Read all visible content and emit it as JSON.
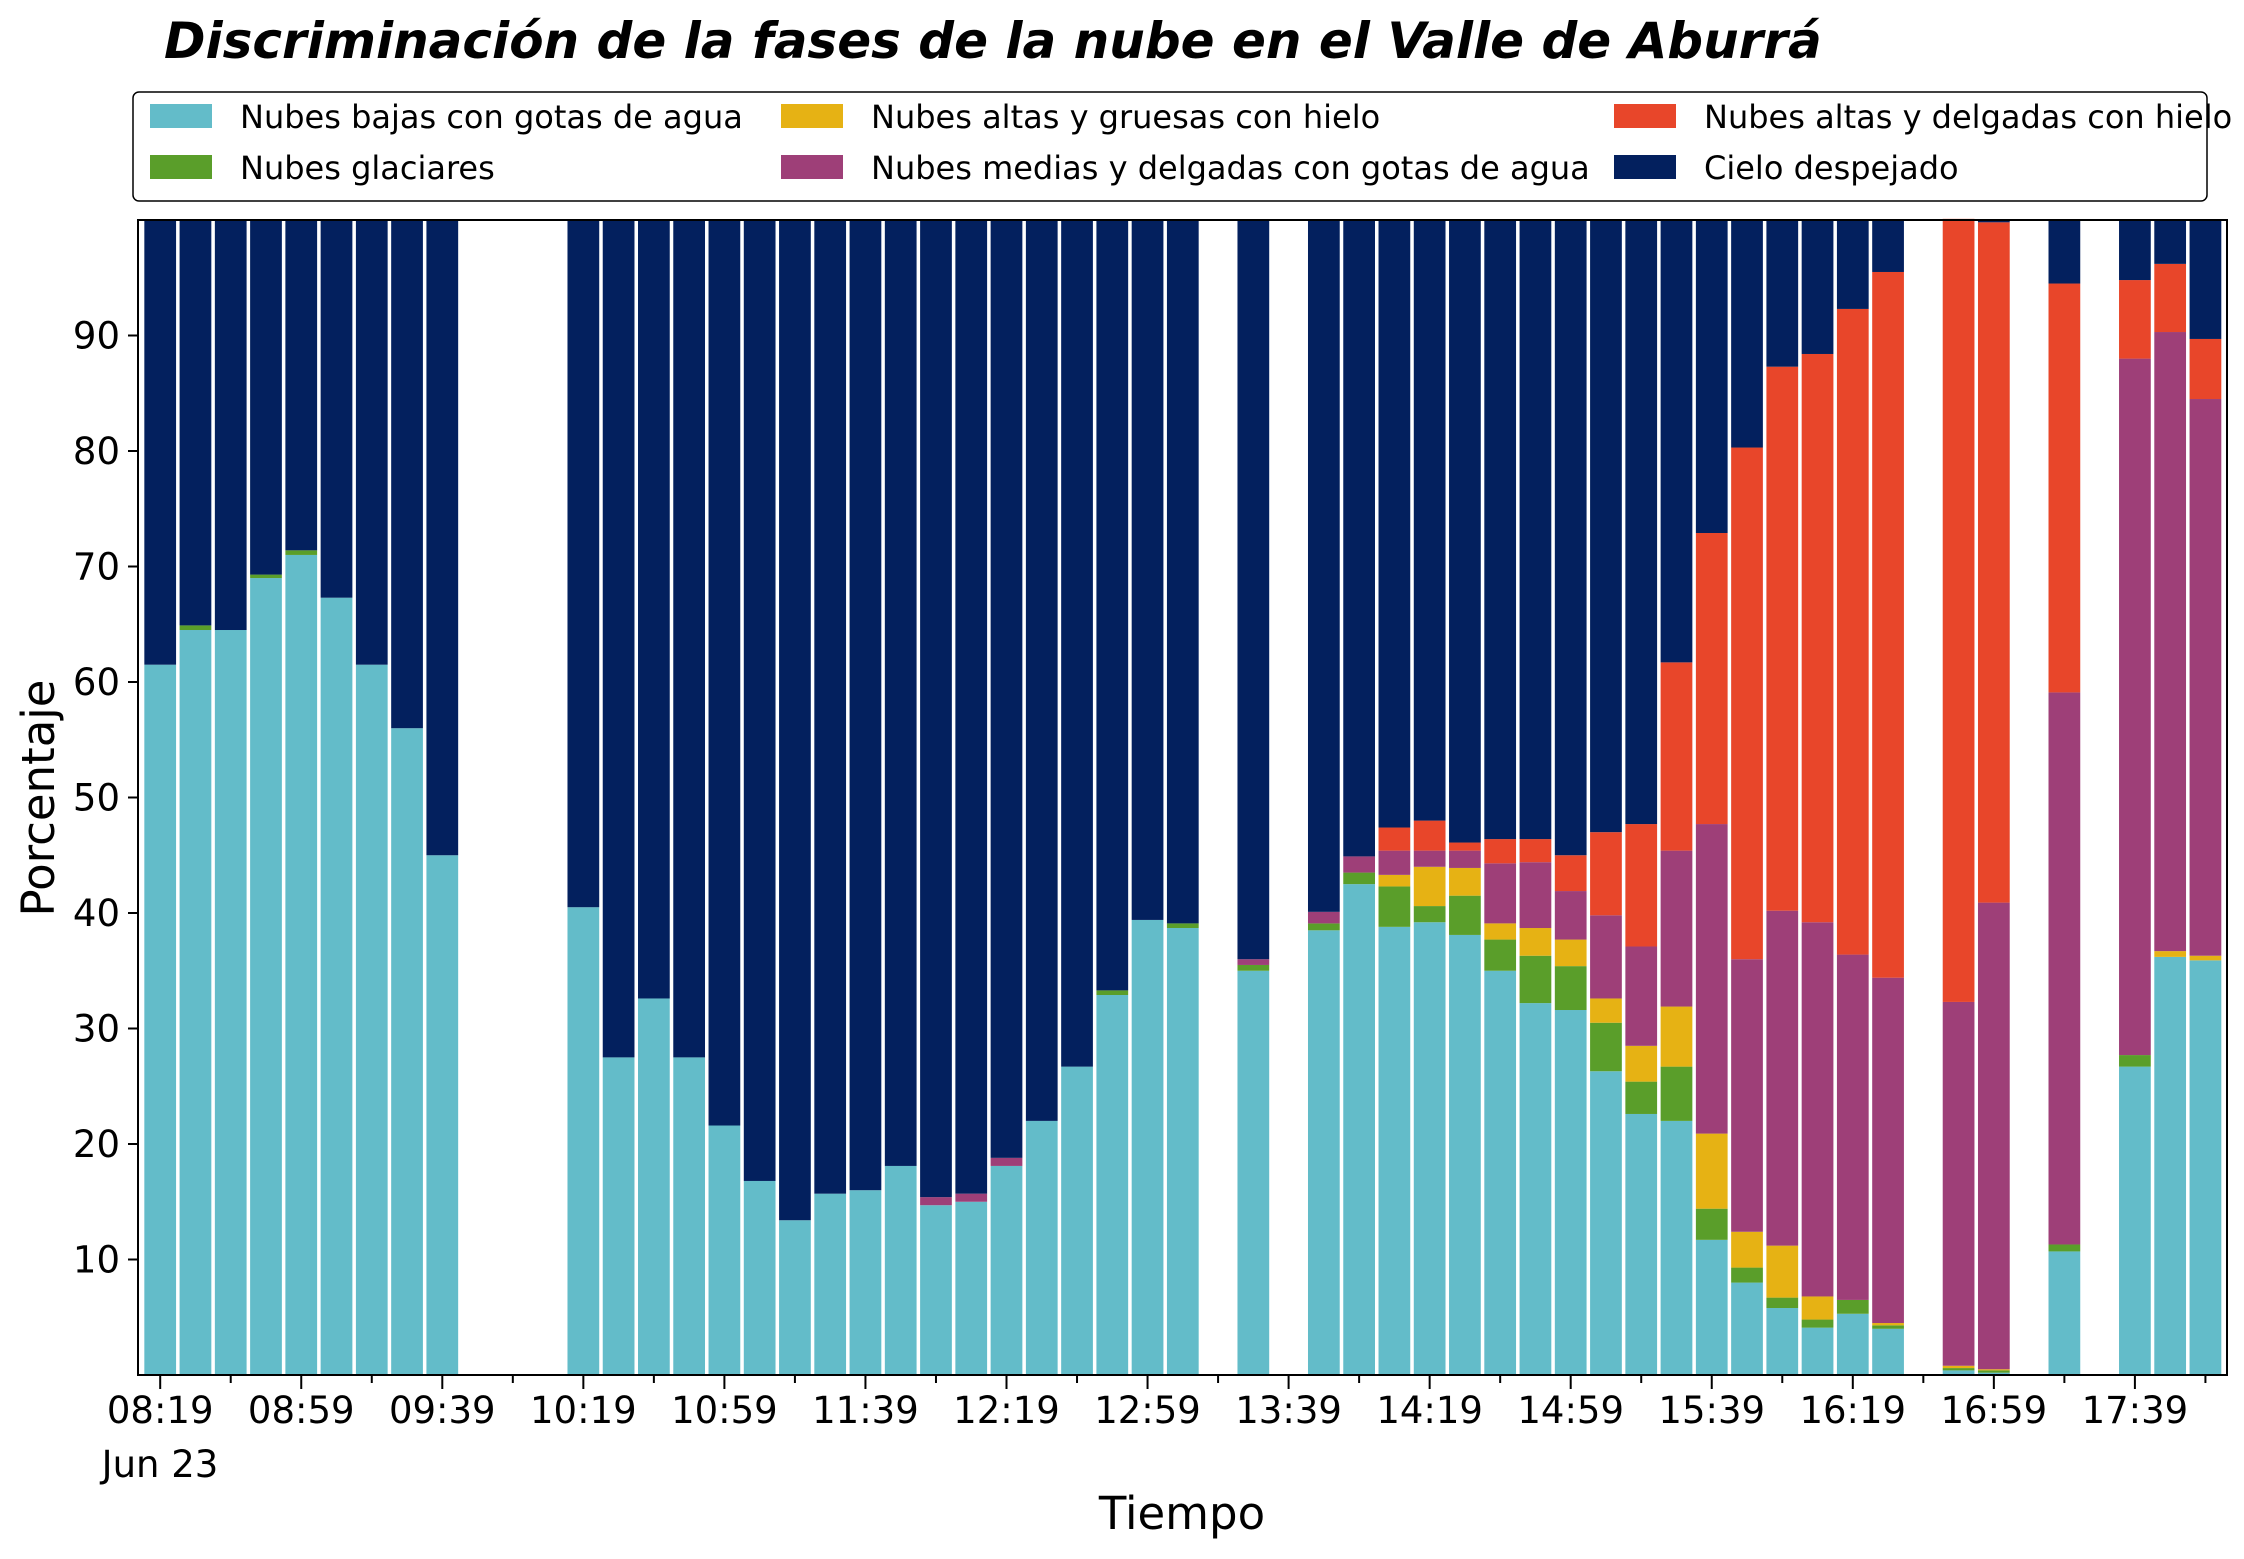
{
  "chart_data": {
    "type": "bar",
    "stacked": true,
    "title": "Discriminación de la fases de la nube en el Valle de Aburrá",
    "xlabel": "Tiempo",
    "ylabel": "Porcentaje",
    "ylim": [
      0,
      100
    ],
    "y_ticks": [
      10,
      20,
      30,
      40,
      50,
      60,
      70,
      80,
      90
    ],
    "grid": false,
    "legend_position": "top",
    "x_tick_labels": [
      "08:19",
      "08:59",
      "09:39",
      "10:19",
      "10:59",
      "11:39",
      "12:19",
      "12:59",
      "13:39",
      "14:19",
      "14:59",
      "15:39",
      "16:19",
      "16:59",
      "17:39"
    ],
    "x_date_label": "Jun 23",
    "categories": [
      "08:19",
      "08:29",
      "08:39",
      "08:49",
      "08:59",
      "09:09",
      "09:19",
      "09:29",
      "09:39",
      "09:49",
      "09:59",
      "10:09",
      "10:19",
      "10:29",
      "10:39",
      "10:49",
      "10:59",
      "11:09",
      "11:19",
      "11:29",
      "11:39",
      "11:49",
      "11:59",
      "12:09",
      "12:19",
      "12:29",
      "12:39",
      "12:49",
      "12:59",
      "13:09",
      "13:19",
      "13:29",
      "13:39",
      "13:49",
      "13:59",
      "14:09",
      "14:19",
      "14:29",
      "14:39",
      "14:49",
      "14:59",
      "15:09",
      "15:19",
      "15:29",
      "15:39",
      "15:49",
      "15:59",
      "16:09",
      "16:19",
      "16:29",
      "16:39",
      "16:49",
      "16:59",
      "17:09",
      "17:19",
      "17:29",
      "17:39",
      "17:49",
      "17:59"
    ],
    "series": [
      {
        "name": "Nubes bajas con gotas de agua",
        "color": "#63bcc9",
        "values": [
          61.5,
          64.5,
          64.5,
          69,
          71,
          67.3,
          61.5,
          56,
          45,
          null,
          null,
          null,
          40.5,
          27.5,
          32.6,
          27.5,
          21.6,
          16.8,
          13.4,
          15.7,
          16,
          18.1,
          14.7,
          15,
          18.1,
          22,
          26.7,
          32.9,
          39.4,
          38.7,
          null,
          35,
          null,
          38.5,
          42.5,
          38.8,
          39.2,
          38.1,
          35,
          32.2,
          31.6,
          26.3,
          22.6,
          22,
          11.7,
          8,
          5.8,
          4.1,
          5.3,
          4,
          null,
          0.4,
          0.2,
          null,
          10.7,
          null,
          26.7,
          36.2,
          35.9
        ]
      },
      {
        "name": "Nubes glaciares",
        "color": "#5a9e2a",
        "values": [
          0,
          0.4,
          0,
          0.3,
          0.4,
          0,
          0,
          0,
          0,
          null,
          null,
          null,
          0,
          0,
          0,
          0,
          0,
          0,
          0,
          0,
          0,
          0,
          0,
          0,
          0,
          0,
          0,
          0.4,
          0,
          0.4,
          null,
          0.5,
          null,
          0.6,
          1,
          3.5,
          1.4,
          3.4,
          2.7,
          4.1,
          3.8,
          4.2,
          2.8,
          4.7,
          2.7,
          1.3,
          0.9,
          0.7,
          1.2,
          0.3,
          null,
          0.2,
          0.2,
          null,
          0.6,
          null,
          1,
          0,
          0
        ]
      },
      {
        "name": "Nubes altas y gruesas con hielo",
        "color": "#e6b214",
        "values": [
          0,
          0,
          0,
          0,
          0,
          0,
          0,
          0,
          0,
          null,
          null,
          null,
          0,
          0,
          0,
          0,
          0,
          0,
          0,
          0,
          0,
          0,
          0,
          0,
          0,
          0,
          0,
          0,
          0,
          0,
          null,
          0,
          null,
          0,
          0,
          1,
          3.4,
          2.4,
          1.4,
          2.4,
          2.3,
          2.1,
          3.1,
          5.2,
          6.5,
          3.1,
          4.5,
          2,
          0,
          0.2,
          null,
          0.2,
          0.1,
          null,
          0,
          null,
          0,
          0.5,
          0.4
        ]
      },
      {
        "name": "Nubes medias y delgadas con gotas de agua",
        "color": "#9e3f78",
        "values": [
          0,
          0,
          0,
          0,
          0,
          0,
          0,
          0,
          0,
          null,
          null,
          null,
          0,
          0,
          0,
          0,
          0,
          0,
          0,
          0,
          0,
          0,
          0.7,
          0.7,
          0.7,
          0,
          0,
          0,
          0,
          0,
          null,
          0.5,
          null,
          1,
          1.4,
          2.1,
          1.4,
          1.5,
          5.2,
          5.7,
          4.2,
          7.2,
          8.6,
          13.5,
          26.8,
          23.6,
          29,
          32.4,
          29.9,
          29.9,
          null,
          31.5,
          40.4,
          null,
          47.8,
          null,
          60.3,
          53.6,
          48.2
        ]
      },
      {
        "name": "Nubes altas y delgadas con hielo",
        "color": "#e8462a",
        "values": [
          0,
          0,
          0,
          0,
          0,
          0,
          0,
          0,
          0,
          null,
          null,
          null,
          0,
          0,
          0,
          0,
          0,
          0,
          0,
          0,
          0,
          0,
          0,
          0,
          0,
          0,
          0,
          0,
          0,
          0,
          null,
          0,
          null,
          0,
          0,
          2,
          2.6,
          0.7,
          2.1,
          2,
          3.1,
          7.2,
          10.6,
          16.3,
          25.2,
          44.3,
          47.1,
          49.2,
          55.9,
          61.1,
          null,
          67.8,
          58.9,
          null,
          35.4,
          null,
          6.8,
          5.9,
          5.2
        ]
      },
      {
        "name": "Cielo despejado",
        "color": "#03205e",
        "values": [
          38.5,
          35.1,
          35.5,
          30.7,
          28.6,
          32.7,
          38.5,
          44,
          55,
          null,
          null,
          null,
          59.5,
          72.5,
          67.4,
          72.5,
          78.4,
          83.2,
          86.6,
          84.3,
          84,
          81.9,
          84.6,
          84.3,
          81.2,
          78,
          73.3,
          66.7,
          60.6,
          60.9,
          null,
          64,
          null,
          59.9,
          55.1,
          52.6,
          52,
          53.9,
          53.6,
          53.6,
          55,
          53,
          52.3,
          38.3,
          27.1,
          19.7,
          12.7,
          11.6,
          7.7,
          4.5,
          null,
          -0.1,
          0.2,
          null,
          5.5,
          null,
          5.2,
          3.8,
          10.3
        ]
      }
    ]
  }
}
